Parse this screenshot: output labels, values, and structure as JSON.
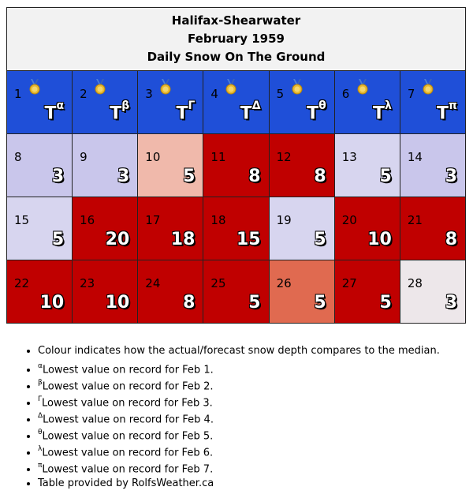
{
  "header": {
    "station": "Halifax-Shearwater",
    "period": "February 1959",
    "subtitle": "Daily Snow On The Ground"
  },
  "rows": [
    [
      {
        "day": "1",
        "value": "T",
        "sup": "α",
        "color": "#1f4fd8",
        "medal": true
      },
      {
        "day": "2",
        "value": "T",
        "sup": "β",
        "color": "#1f4fd8",
        "medal": true
      },
      {
        "day": "3",
        "value": "T",
        "sup": "Γ",
        "color": "#1f4fd8",
        "medal": true
      },
      {
        "day": "4",
        "value": "T",
        "sup": "Δ",
        "color": "#1f4fd8",
        "medal": true
      },
      {
        "day": "5",
        "value": "T",
        "sup": "θ",
        "color": "#1f4fd8",
        "medal": true
      },
      {
        "day": "6",
        "value": "T",
        "sup": "λ",
        "color": "#1f4fd8",
        "medal": true
      },
      {
        "day": "7",
        "value": "T",
        "sup": "π",
        "color": "#1f4fd8",
        "medal": true
      }
    ],
    [
      {
        "day": "8",
        "value": "3",
        "color": "#c9c6eb"
      },
      {
        "day": "9",
        "value": "3",
        "color": "#c9c6eb"
      },
      {
        "day": "10",
        "value": "5",
        "color": "#f0b9ab"
      },
      {
        "day": "11",
        "value": "8",
        "color": "#c00000"
      },
      {
        "day": "12",
        "value": "8",
        "color": "#c00000"
      },
      {
        "day": "13",
        "value": "5",
        "color": "#d7d5ef"
      },
      {
        "day": "14",
        "value": "3",
        "color": "#c9c6eb"
      }
    ],
    [
      {
        "day": "15",
        "value": "5",
        "color": "#d7d5ef"
      },
      {
        "day": "16",
        "value": "20",
        "color": "#c00000"
      },
      {
        "day": "17",
        "value": "18",
        "color": "#c00000"
      },
      {
        "day": "18",
        "value": "15",
        "color": "#c00000"
      },
      {
        "day": "19",
        "value": "5",
        "color": "#d7d5ef"
      },
      {
        "day": "20",
        "value": "10",
        "color": "#c00000"
      },
      {
        "day": "21",
        "value": "8",
        "color": "#c00000"
      }
    ],
    [
      {
        "day": "22",
        "value": "10",
        "color": "#c00000"
      },
      {
        "day": "23",
        "value": "10",
        "color": "#c00000"
      },
      {
        "day": "24",
        "value": "8",
        "color": "#c00000"
      },
      {
        "day": "25",
        "value": "5",
        "color": "#c00000"
      },
      {
        "day": "26",
        "value": "5",
        "color": "#e06a50"
      },
      {
        "day": "27",
        "value": "5",
        "color": "#c00000"
      },
      {
        "day": "28",
        "value": "3",
        "color": "#ede7ea"
      }
    ]
  ],
  "notes": {
    "colour": "Colour indicates how the actual/forecast snow depth compares to the median.",
    "records": [
      {
        "sup": "α",
        "text": "Lowest value on record for Feb 1."
      },
      {
        "sup": "β",
        "text": "Lowest value on record for Feb 2."
      },
      {
        "sup": "Γ",
        "text": "Lowest value on record for Feb 3."
      },
      {
        "sup": "Δ",
        "text": "Lowest value on record for Feb 4."
      },
      {
        "sup": "θ",
        "text": "Lowest value on record for Feb 5."
      },
      {
        "sup": "λ",
        "text": "Lowest value on record for Feb 6."
      },
      {
        "sup": "π",
        "text": "Lowest value on record for Feb 7."
      }
    ],
    "credit": "Table provided by RolfsWeather.ca"
  }
}
